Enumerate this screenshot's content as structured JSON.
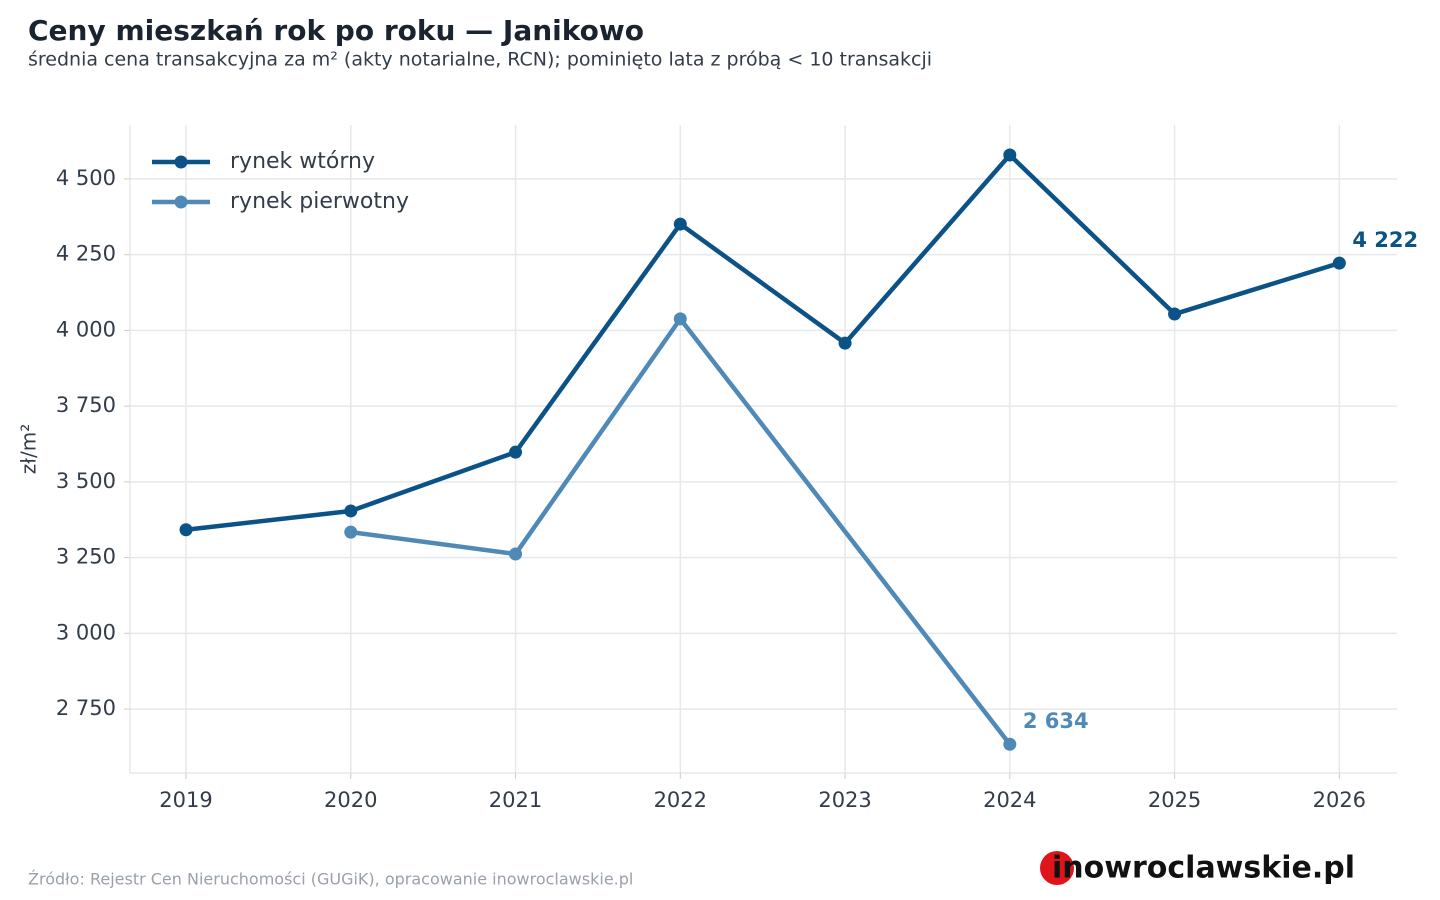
{
  "chart_data": {
    "type": "line",
    "title": "Ceny mieszkań rok po roku — Janikowo",
    "subtitle": "średnia cena transakcyjna za m² (akty notarialne, RCN); pominięto lata z próbą < 10 transakcji",
    "ylabel": "zł/m²",
    "source": "Źródło: Rejestr Cen Nieruchomości (GUGiK), opracowanie inowroclawskie.pl",
    "logo": "inowroclawskie.pl",
    "xlim": [
      2018.66,
      2026.35
    ],
    "xticks": [
      2019,
      2020,
      2021,
      2022,
      2023,
      2024,
      2025,
      2026
    ],
    "ylim": [
      2539,
      4678
    ],
    "yticks": [
      {
        "value": 2750,
        "label": "2 750"
      },
      {
        "value": 3000,
        "label": "3 000"
      },
      {
        "value": 3250,
        "label": "3 250"
      },
      {
        "value": 3500,
        "label": "3 500"
      },
      {
        "value": 3750,
        "label": "3 750"
      },
      {
        "value": 4000,
        "label": "4 000"
      },
      {
        "value": 4250,
        "label": "4 250"
      },
      {
        "value": 4500,
        "label": "4 500"
      }
    ],
    "grid": true,
    "legend": "upper left",
    "series": [
      {
        "name": "rynek wtórny",
        "color": "#0b5287",
        "x": [
          2019,
          2020,
          2021,
          2022,
          2023,
          2024,
          2025,
          2026
        ],
        "values": [
          3342,
          3404,
          3598,
          4351,
          3958,
          4579,
          4054,
          4222
        ],
        "value_labels": [
          null,
          null,
          null,
          null,
          null,
          null,
          null,
          "4 222"
        ]
      },
      {
        "name": "rynek pierwotny",
        "color": "#4e89b8",
        "x": [
          2020,
          2021,
          2022,
          2024
        ],
        "values": [
          3334,
          3262,
          4038,
          2634
        ],
        "value_labels": [
          null,
          null,
          null,
          "2 634"
        ]
      }
    ]
  }
}
